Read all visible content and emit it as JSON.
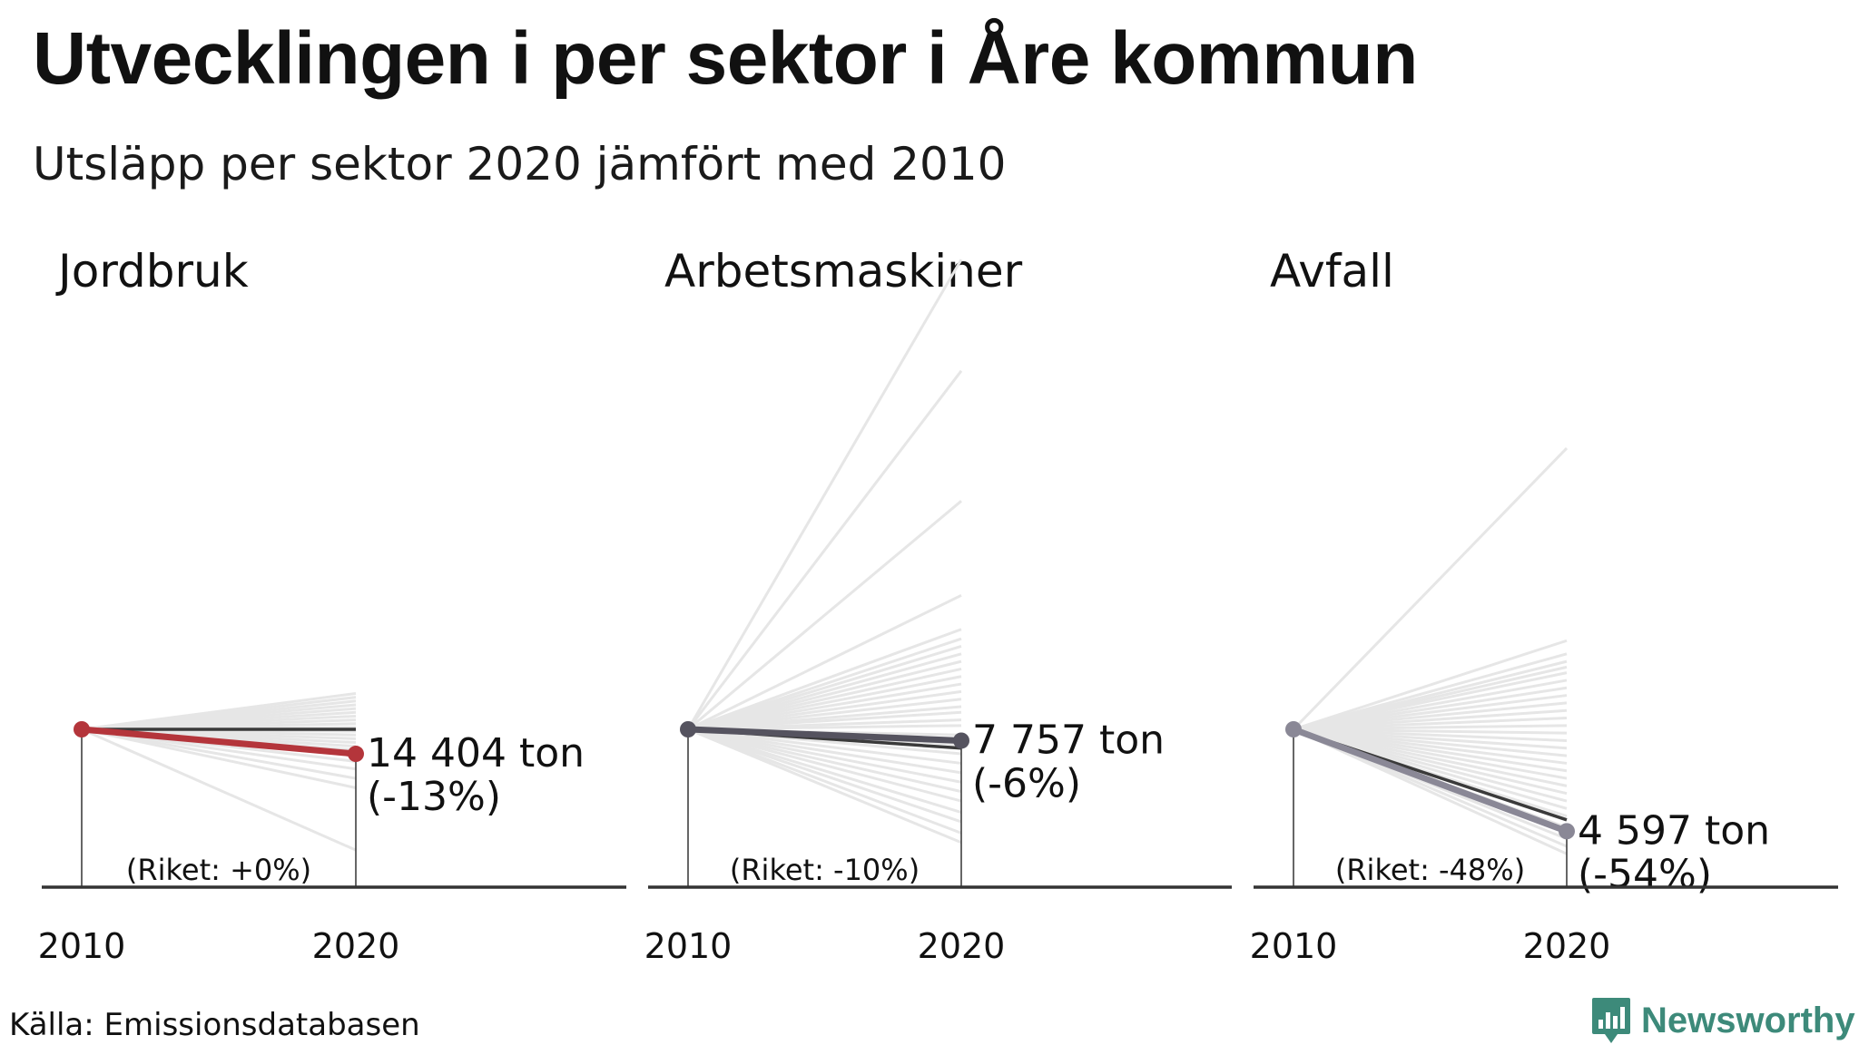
{
  "title": "Utvecklingen i per sektor i Åre kommun",
  "subtitle": "Utsläpp per sektor 2020 jämfört med 2010",
  "source": "Källa: Emissionsdatabasen",
  "brand": {
    "name": "Newsworthy",
    "icon": "bar-chart-badge-icon",
    "color": "#3d8a7a"
  },
  "chart_data": [
    {
      "type": "line",
      "title": "Jordbruk",
      "x": [
        "2010",
        "2020"
      ],
      "highlight": {
        "value_label": "14 404 ton",
        "change_label": "(-13%)",
        "change": -13,
        "color": "#b4353b"
      },
      "national": {
        "label": "(Riket: +0%)",
        "change": 0
      },
      "background_changes": [
        19,
        17,
        15,
        13,
        11,
        9,
        7,
        5,
        3,
        1,
        -1,
        -3,
        -5,
        -7,
        -9,
        -11,
        -14,
        -17,
        -21,
        -26,
        -31,
        -64
      ],
      "background_color": "#e6e6e6"
    },
    {
      "type": "line",
      "title": "Arbetsmaskiner",
      "x": [
        "2010",
        "2020"
      ],
      "highlight": {
        "value_label": "7 757 ton",
        "change_label": "(-6%)",
        "change": -6,
        "color": "#55535f"
      },
      "national": {
        "label": "(Riket: -10%)",
        "change": -10
      },
      "background_changes": [
        249,
        190,
        121,
        71,
        53,
        48,
        44,
        40,
        36,
        32,
        28,
        24,
        20,
        16,
        12,
        9,
        5,
        2,
        -3,
        -8,
        -13,
        -18,
        -23,
        -28,
        -33,
        -38,
        -44,
        -49,
        -55,
        -60
      ],
      "background_color": "#e6e6e6"
    },
    {
      "type": "line",
      "title": "Avfall",
      "x": [
        "2010",
        "2020"
      ],
      "highlight": {
        "value_label": "4 597 ton",
        "change_label": "(-54%)",
        "change": -54,
        "color": "#8a8896"
      },
      "national": {
        "label": "(Riket: -48%)",
        "change": -48
      },
      "background_changes": [
        149,
        47,
        40,
        36,
        33,
        30,
        26,
        22,
        18,
        14,
        10,
        6,
        2,
        -2,
        -6,
        -10,
        -14,
        -18,
        -22,
        -26,
        -30,
        -34,
        -38,
        -42,
        -46,
        -52,
        -58,
        -62,
        -66
      ],
      "background_color": "#e6e6e6"
    }
  ]
}
